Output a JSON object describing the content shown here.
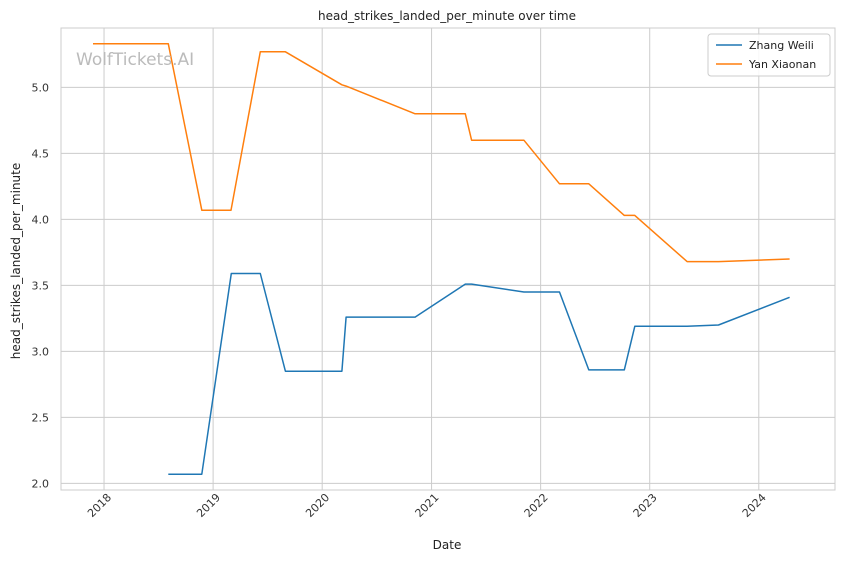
{
  "chart_data": {
    "type": "line",
    "title": "head_strikes_landed_per_minute over time",
    "xlabel": "Date",
    "ylabel": "head_strikes_landed_per_minute",
    "watermark": "WolfTickets.AI",
    "xlim": [
      "2017-08-10",
      "2024-09-12"
    ],
    "ylim": [
      1.95,
      5.45
    ],
    "x_ticks": [
      "2018",
      "2019",
      "2020",
      "2021",
      "2022",
      "2023",
      "2024"
    ],
    "y_ticks": [
      "2.0",
      "2.5",
      "3.0",
      "3.5",
      "4.0",
      "4.5",
      "5.0"
    ],
    "grid": true,
    "legend_position": "top-right",
    "series": [
      {
        "name": "Zhang Weili",
        "color": "#1f77b4",
        "points": [
          [
            "2018-08-04",
            2.07
          ],
          [
            "2018-11-24",
            2.07
          ],
          [
            "2019-03-03",
            3.59
          ],
          [
            "2019-06-08",
            3.59
          ],
          [
            "2019-08-31",
            2.85
          ],
          [
            "2020-03-07",
            2.85
          ],
          [
            "2020-03-21",
            3.26
          ],
          [
            "2020-11-07",
            3.26
          ],
          [
            "2021-04-24",
            3.51
          ],
          [
            "2021-05-15",
            3.51
          ],
          [
            "2021-11-06",
            3.45
          ],
          [
            "2022-03-05",
            3.45
          ],
          [
            "2022-06-11",
            2.86
          ],
          [
            "2022-10-08",
            2.86
          ],
          [
            "2022-11-12",
            3.19
          ],
          [
            "2023-05-06",
            3.19
          ],
          [
            "2023-08-19",
            3.2
          ],
          [
            "2024-04-13",
            3.41
          ]
        ]
      },
      {
        "name": "Yan Xiaonan",
        "color": "#ff7f0e",
        "points": [
          [
            "2017-11-25",
            5.33
          ],
          [
            "2018-08-04",
            5.33
          ],
          [
            "2018-11-24",
            4.07
          ],
          [
            "2019-03-02",
            4.07
          ],
          [
            "2019-06-08",
            5.27
          ],
          [
            "2019-08-31",
            5.27
          ],
          [
            "2020-03-07",
            5.02
          ],
          [
            "2020-03-21",
            5.01
          ],
          [
            "2020-11-07",
            4.8
          ],
          [
            "2021-04-24",
            4.8
          ],
          [
            "2021-05-15",
            4.6
          ],
          [
            "2021-11-06",
            4.6
          ],
          [
            "2022-03-05",
            4.27
          ],
          [
            "2022-06-11",
            4.27
          ],
          [
            "2022-10-08",
            4.03
          ],
          [
            "2022-11-12",
            4.03
          ],
          [
            "2023-05-06",
            3.68
          ],
          [
            "2023-08-19",
            3.68
          ],
          [
            "2024-04-13",
            3.7
          ]
        ]
      }
    ]
  }
}
